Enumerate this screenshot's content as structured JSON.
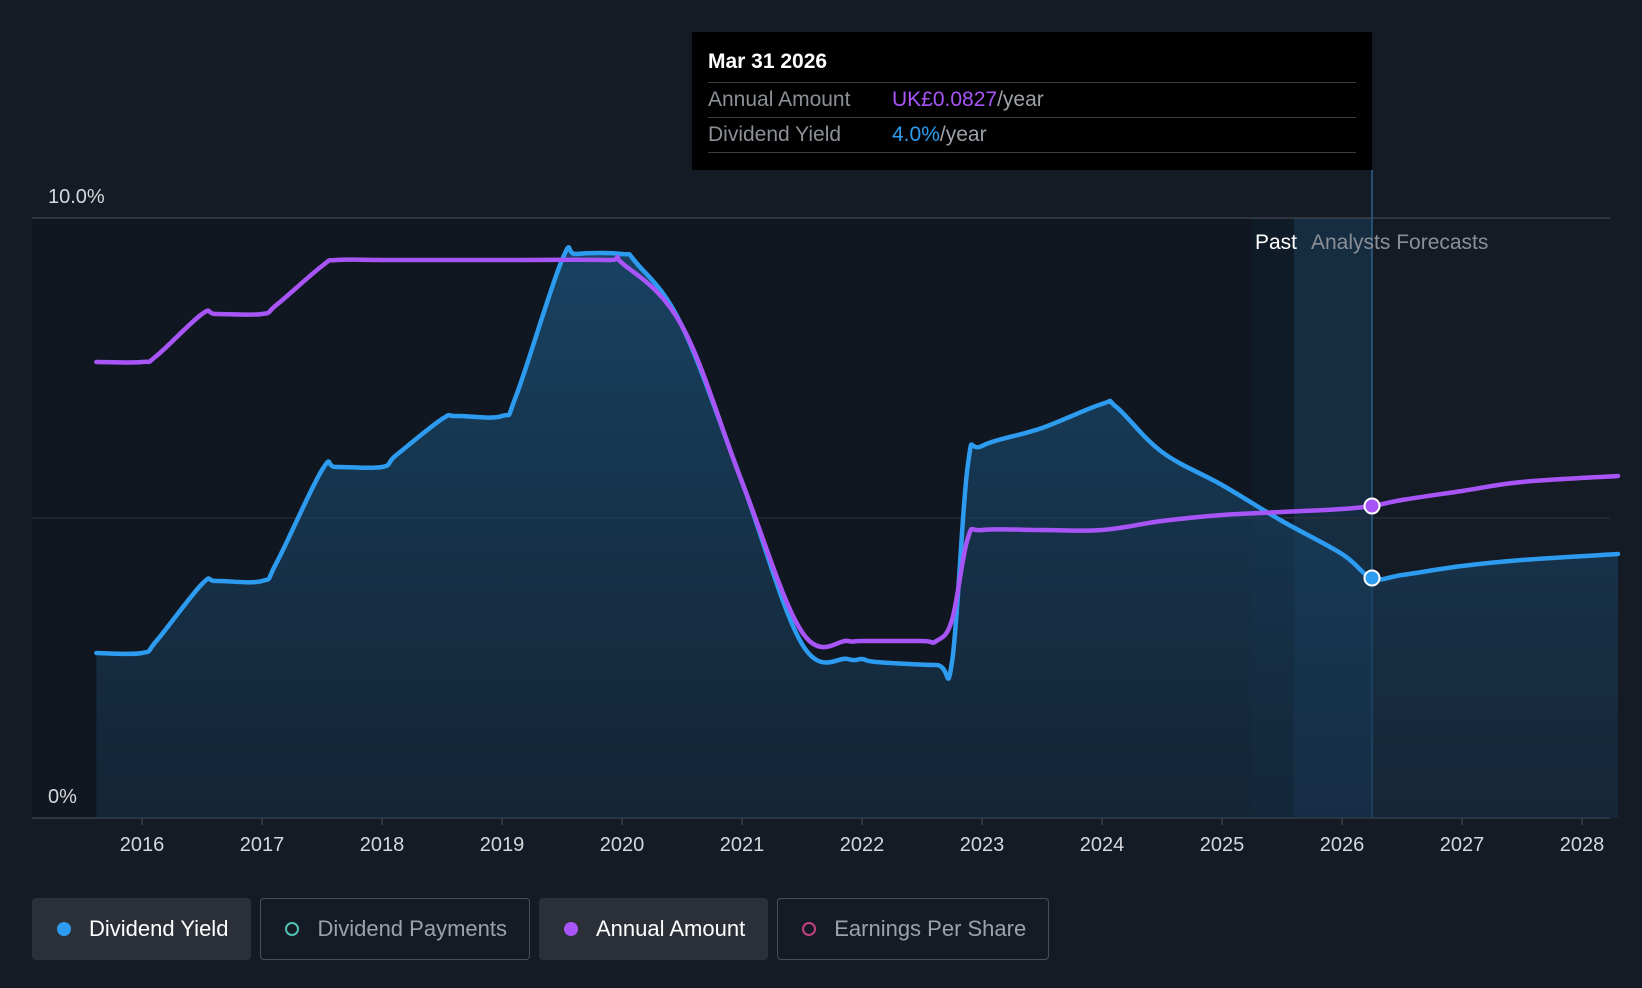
{
  "chart_data": {
    "type": "line",
    "y_tick_labels": [
      "10.0%",
      "0%"
    ],
    "x_tick_labels": [
      "2016",
      "2017",
      "2018",
      "2019",
      "2020",
      "2021",
      "2022",
      "2023",
      "2024",
      "2025",
      "2026",
      "2027",
      "2028"
    ],
    "x_range": [
      2015.5,
      2028.3
    ],
    "y_range": [
      0,
      10
    ],
    "y_axis_unit": "%",
    "grid": "horizontal",
    "past_label": "Past",
    "forecast_label": "Analysts Forecasts",
    "series": [
      {
        "name": "Dividend Yield",
        "color": "#2d9cf0",
        "area": true,
        "points": [
          [
            2015.62,
            2.75
          ],
          [
            2016.0,
            2.75
          ],
          [
            2016.12,
            2.95
          ],
          [
            2016.5,
            3.9
          ],
          [
            2016.62,
            3.95
          ],
          [
            2017.0,
            3.95
          ],
          [
            2017.12,
            4.25
          ],
          [
            2017.5,
            5.8
          ],
          [
            2017.62,
            5.85
          ],
          [
            2018.0,
            5.85
          ],
          [
            2018.12,
            6.05
          ],
          [
            2018.5,
            6.65
          ],
          [
            2018.62,
            6.7
          ],
          [
            2019.0,
            6.7
          ],
          [
            2019.12,
            7.05
          ],
          [
            2019.5,
            9.3
          ],
          [
            2019.62,
            9.4
          ],
          [
            2020.0,
            9.4
          ],
          [
            2020.12,
            9.25
          ],
          [
            2020.5,
            8.2
          ],
          [
            2021.0,
            5.6
          ],
          [
            2021.5,
            2.9
          ],
          [
            2021.88,
            2.65
          ],
          [
            2022.0,
            2.65
          ],
          [
            2022.12,
            2.6
          ],
          [
            2022.62,
            2.55
          ],
          [
            2022.75,
            2.6
          ],
          [
            2022.88,
            5.85
          ],
          [
            2023.0,
            6.2
          ],
          [
            2023.5,
            6.5
          ],
          [
            2024.0,
            6.9
          ],
          [
            2024.12,
            6.85
          ],
          [
            2024.5,
            6.1
          ],
          [
            2025.0,
            5.55
          ],
          [
            2025.5,
            4.95
          ],
          [
            2026.0,
            4.4
          ],
          [
            2026.25,
            4.0
          ],
          [
            2026.5,
            4.05
          ],
          [
            2027.0,
            4.2
          ],
          [
            2027.5,
            4.3
          ],
          [
            2028.3,
            4.4
          ]
        ]
      },
      {
        "name": "Annual Amount",
        "color": "#a855f7",
        "area": false,
        "points": [
          [
            2015.62,
            7.6
          ],
          [
            2016.0,
            7.6
          ],
          [
            2016.12,
            7.7
          ],
          [
            2016.5,
            8.4
          ],
          [
            2016.62,
            8.4
          ],
          [
            2017.0,
            8.4
          ],
          [
            2017.12,
            8.55
          ],
          [
            2017.5,
            9.2
          ],
          [
            2017.62,
            9.3
          ],
          [
            2018.0,
            9.3
          ],
          [
            2019.0,
            9.3
          ],
          [
            2019.88,
            9.3
          ],
          [
            2020.0,
            9.25
          ],
          [
            2020.5,
            8.2
          ],
          [
            2021.0,
            5.6
          ],
          [
            2021.5,
            3.1
          ],
          [
            2021.88,
            2.95
          ],
          [
            2022.0,
            2.95
          ],
          [
            2022.5,
            2.95
          ],
          [
            2022.62,
            2.95
          ],
          [
            2022.75,
            3.3
          ],
          [
            2022.88,
            4.65
          ],
          [
            2023.0,
            4.8
          ],
          [
            2023.5,
            4.8
          ],
          [
            2024.0,
            4.8
          ],
          [
            2024.5,
            4.95
          ],
          [
            2025.0,
            5.05
          ],
          [
            2025.5,
            5.1
          ],
          [
            2026.0,
            5.15
          ],
          [
            2026.25,
            5.2
          ],
          [
            2026.5,
            5.3
          ],
          [
            2027.0,
            5.45
          ],
          [
            2027.5,
            5.6
          ],
          [
            2028.3,
            5.7
          ]
        ]
      }
    ],
    "hover": {
      "x": 2026.25,
      "yield": 4.0,
      "amount_y": 5.2
    },
    "forecast_start_x": 2025.25,
    "forecast_band_end_x": 2025.6
  },
  "tooltip": {
    "date": "Mar 31 2026",
    "rows": [
      {
        "label": "Annual Amount",
        "value": "UK£0.0827",
        "unit": "/year"
      },
      {
        "label": "Dividend Yield",
        "value": "4.0%",
        "unit": "/year"
      }
    ]
  },
  "legend": [
    {
      "label": "Dividend Yield",
      "color": "#2d9cf0",
      "active": true,
      "filled": true
    },
    {
      "label": "Dividend Payments",
      "color": "#4fc1b0",
      "active": false,
      "filled": false
    },
    {
      "label": "Annual Amount",
      "color": "#a855f7",
      "active": true,
      "filled": true
    },
    {
      "label": "Earnings Per Share",
      "color": "#c2417f",
      "active": false,
      "filled": false
    }
  ]
}
